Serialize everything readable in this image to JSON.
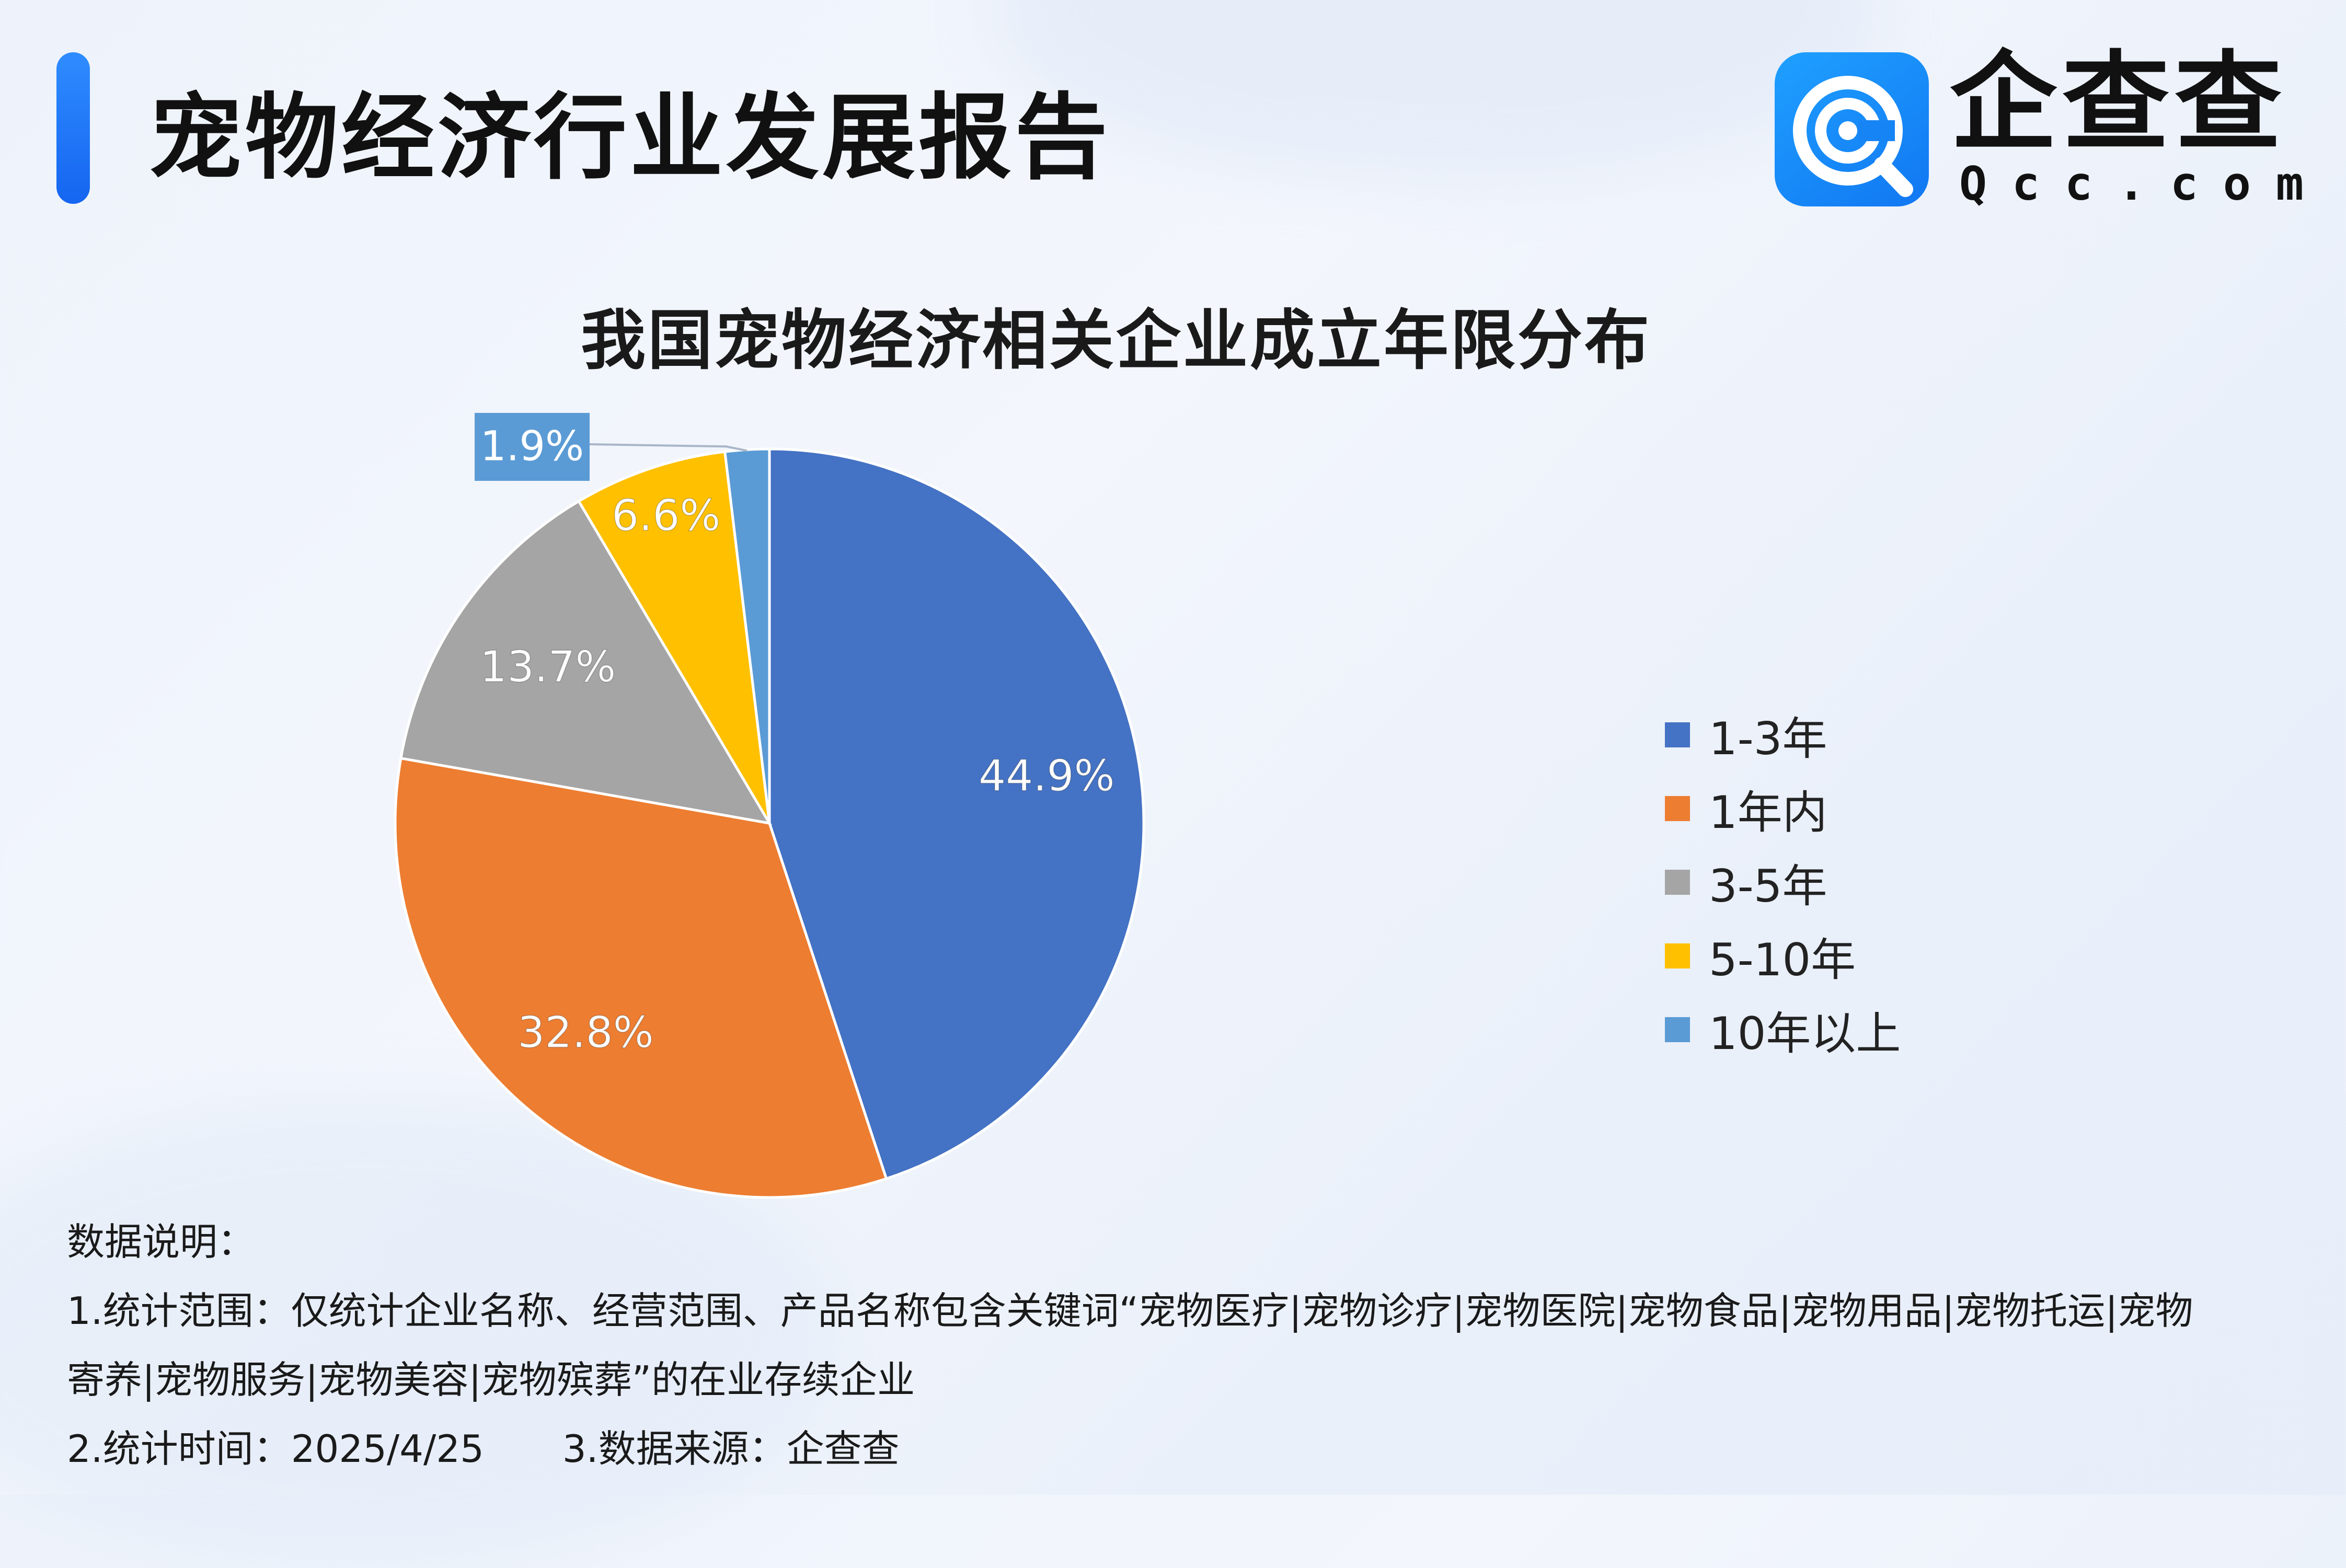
{
  "header": {
    "title": "宠物经济行业发展报告",
    "logo_text": "企查查",
    "logo_domain": "Qcc.com"
  },
  "chart_data": {
    "type": "pie",
    "title": "我国宠物经济相关企业成立年限分布",
    "legend_position": "right",
    "slices": [
      {
        "name": "1-3年",
        "value": 44.9,
        "label": "44.9%",
        "color": "#4472C4"
      },
      {
        "name": "1年内",
        "value": 32.8,
        "label": "32.8%",
        "color": "#ED7D31"
      },
      {
        "name": "3-5年",
        "value": 13.7,
        "label": "13.7%",
        "color": "#A5A5A5"
      },
      {
        "name": "5-10年",
        "value": 6.6,
        "label": "6.6%",
        "color": "#FFC000"
      },
      {
        "name": "10年以上",
        "value": 1.9,
        "label": "1.9%",
        "color": "#5B9BD5"
      }
    ]
  },
  "notes": {
    "heading": "数据说明：",
    "line1": "1.统计范围：仅统计企业名称、经营范围、产品名称包含关键词“宠物医疗|宠物诊疗|宠物医院|宠物食品|宠物用品|宠物托运|宠物",
    "line2": "寄养|宠物服务|宠物美容|宠物殡葬”的在业存续企业",
    "time": "2.统计时间：2025/4/25",
    "source": "3.数据来源：企查查"
  }
}
